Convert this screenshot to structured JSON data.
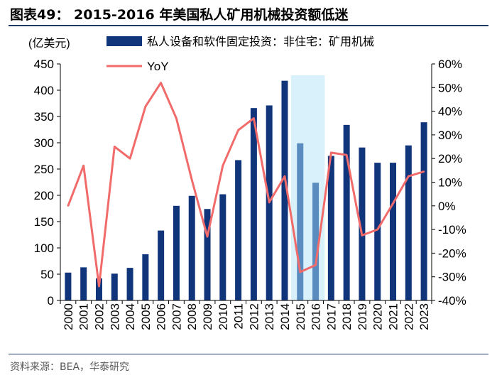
{
  "header": {
    "title": "图表49： 2015-2016 年美国私人矿用机械投资额低迷"
  },
  "footer": {
    "source": "资料来源：BEA，华泰研究"
  },
  "colors": {
    "bar": "#10357a",
    "bar_highlight": "#5a8cc0",
    "line": "#f26b6b",
    "shade": "#d9f1fb",
    "rule": "#1f3864"
  },
  "chart_data": {
    "type": "bar",
    "unit_label": "(亿美元)",
    "categories": [
      "2000",
      "2001",
      "2002",
      "2003",
      "2004",
      "2005",
      "2006",
      "2007",
      "2008",
      "2009",
      "2010",
      "2011",
      "2012",
      "2013",
      "2014",
      "2015",
      "2016",
      "2017",
      "2018",
      "2019",
      "2020",
      "2021",
      "2022",
      "2023"
    ],
    "series": [
      {
        "name": "私人设备和软件固定投资：非住宅：矿用机械",
        "type": "bar",
        "axis": "left",
        "values": [
          53,
          63,
          42,
          51,
          62,
          88,
          133,
          180,
          199,
          174,
          202,
          267,
          366,
          371,
          418,
          299,
          224,
          275,
          334,
          291,
          262,
          262,
          295,
          339
        ]
      },
      {
        "name": "YoY",
        "type": "line",
        "axis": "right",
        "values": [
          0,
          17,
          -34,
          25,
          20,
          42,
          52,
          37,
          11,
          -13,
          17,
          32,
          37,
          1.5,
          12.5,
          -28,
          -25,
          22.5,
          21.5,
          -12.5,
          -10,
          1,
          12.5,
          14.5
        ]
      }
    ],
    "highlight_categories": [
      "2015",
      "2016"
    ],
    "y_left": {
      "min": 0,
      "max": 450,
      "ticks": [
        "0",
        "50",
        "100",
        "150",
        "200",
        "250",
        "300",
        "350",
        "400",
        "450"
      ]
    },
    "y_right": {
      "min": -40,
      "max": 60,
      "ticks": [
        "-40%",
        "-30%",
        "-20%",
        "-10%",
        "0%",
        "10%",
        "20%",
        "30%",
        "40%",
        "50%",
        "60%"
      ]
    }
  }
}
